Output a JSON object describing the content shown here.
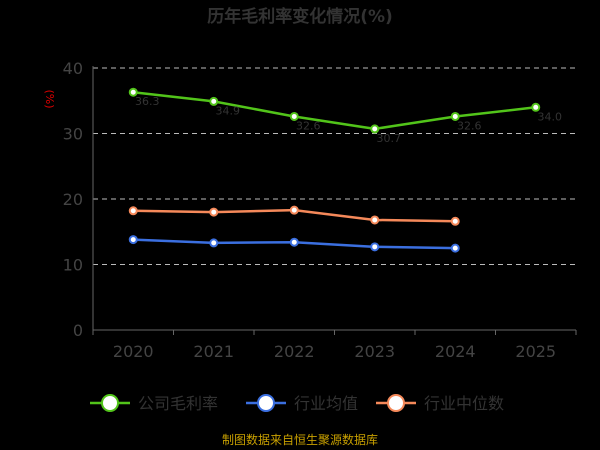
{
  "chart_data": {
    "type": "line",
    "title": "历年毛利率变化情况(%)",
    "ylabel": "(%)",
    "xlabel": "",
    "categories": [
      "2020",
      "2021",
      "2022",
      "2023",
      "2024",
      "2025"
    ],
    "ylim": [
      0,
      40
    ],
    "yticks": [
      0,
      10,
      20,
      30,
      40
    ],
    "grid": true,
    "legend_position": "bottom",
    "series": [
      {
        "name": "公司毛利率",
        "color": "#52c41a",
        "values": [
          36.3,
          34.9,
          32.6,
          30.7,
          32.6,
          34.0
        ],
        "data_labels": [
          "36.3",
          "34.9",
          "32.6",
          "30.7",
          "32.6",
          "34.0"
        ]
      },
      {
        "name": "行业均值",
        "color": "#3b6fe0",
        "values": [
          13.8,
          13.3,
          13.4,
          12.7,
          12.5,
          null
        ]
      },
      {
        "name": "行业中位数",
        "color": "#f5895a",
        "values": [
          18.2,
          18.0,
          18.3,
          16.8,
          16.6,
          null
        ]
      }
    ],
    "source": "制图数据来自恒生聚源数据库"
  }
}
